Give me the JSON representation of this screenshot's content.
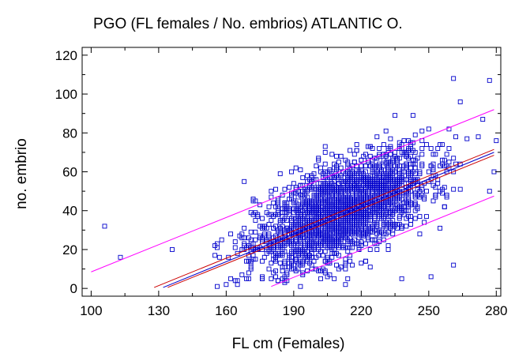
{
  "chart_data": {
    "type": "scatter",
    "title": "PGO (FL females  /  No. embrios) ATLANTIC O.",
    "xlabel": "FL cm (Females)",
    "ylabel": "no. embrio",
    "xlim": [
      96,
      282
    ],
    "ylim": [
      -4,
      124
    ],
    "x_ticks": [
      100,
      130,
      160,
      190,
      220,
      250,
      280
    ],
    "y_ticks": [
      0,
      20,
      40,
      60,
      80,
      100,
      120
    ],
    "grid": false,
    "marker": "open-square",
    "point_color": "#0000cc",
    "cloud": {
      "count": 2600,
      "x_center": 212,
      "x_sd": 19,
      "intercept": -62,
      "slope": 0.48,
      "resid_sd": 11.5,
      "x_range": [
        150,
        280
      ],
      "y_range": [
        1,
        110
      ]
    },
    "outliers": [
      {
        "x": 106,
        "y": 32
      },
      {
        "x": 113,
        "y": 16
      },
      {
        "x": 136,
        "y": 20
      },
      {
        "x": 168,
        "y": 55
      },
      {
        "x": 160,
        "y": 2
      },
      {
        "x": 261,
        "y": 108
      },
      {
        "x": 277,
        "y": 107
      },
      {
        "x": 264,
        "y": 96
      },
      {
        "x": 279,
        "y": 60
      },
      {
        "x": 277,
        "y": 50
      },
      {
        "x": 274,
        "y": 87
      },
      {
        "x": 261,
        "y": 12
      },
      {
        "x": 251,
        "y": 6
      },
      {
        "x": 238,
        "y": 5
      },
      {
        "x": 243,
        "y": 89
      }
    ],
    "series": [
      {
        "role": "regression-fit",
        "color": "#cc0000",
        "x": [
          128,
          279
        ],
        "y": [
          0.5,
          71.5
        ]
      },
      {
        "role": "regression-fit-alt",
        "color": "#0000cc",
        "x": [
          132,
          279
        ],
        "y": [
          0.5,
          70
        ]
      },
      {
        "role": "confidence-band-lower",
        "color": "#cc0000",
        "x": [
          134,
          279
        ],
        "y": [
          0.5,
          68.5
        ]
      },
      {
        "role": "prediction-band-upper",
        "color": "#ff00ff",
        "x": [
          100,
          279
        ],
        "y": [
          8.5,
          92
        ]
      },
      {
        "role": "prediction-band-lower",
        "color": "#ff00ff",
        "x": [
          180,
          279
        ],
        "y": [
          1,
          47.5
        ]
      }
    ]
  }
}
